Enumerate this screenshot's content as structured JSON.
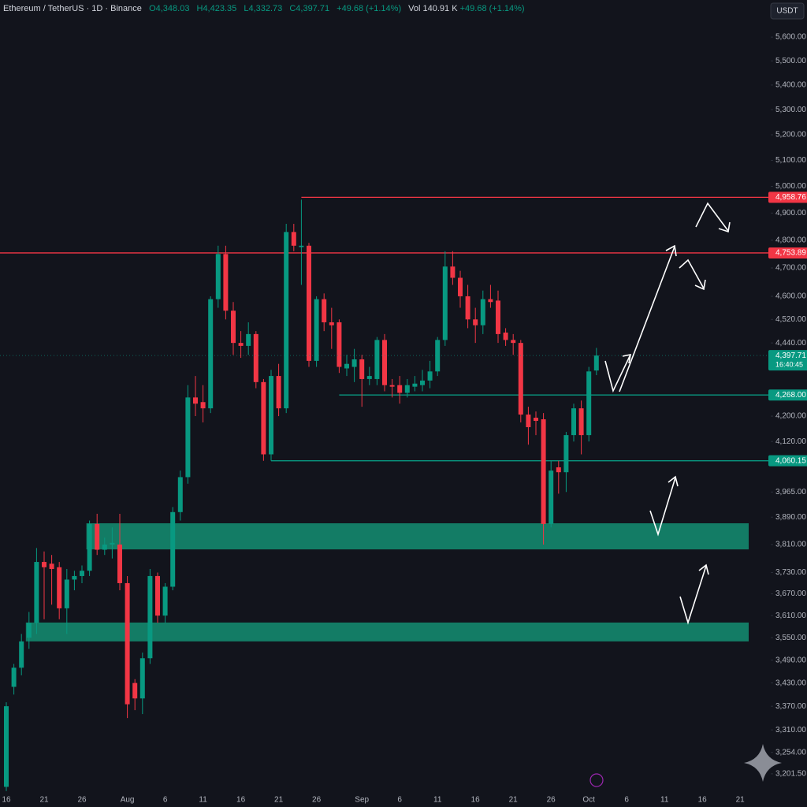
{
  "chart_data": {
    "type": "candlestick",
    "title": "Ethereum / TetherUS · 1D · Binance",
    "legend_values": [
      "O4,348.03",
      "H4,423.35",
      "L4,332.73",
      "C4,397.71",
      "+49.68 (+1.14%)"
    ],
    "volume": "Vol 140.91 K",
    "volume_change": "+49.68 (+1.14%)",
    "currency": "USDT",
    "up_color": "#089981",
    "down_color": "#f23645",
    "log": true,
    "grid": false,
    "ylim": [
      3167,
      5760
    ],
    "yticks": [
      {
        "value": 5600,
        "label": "5,600.00"
      },
      {
        "value": 5500,
        "label": "5,500.00"
      },
      {
        "value": 5400,
        "label": "5,400.00"
      },
      {
        "value": 5300,
        "label": "5,300.00"
      },
      {
        "value": 5200,
        "label": "5,200.00"
      },
      {
        "value": 5100,
        "label": "5,100.00"
      },
      {
        "value": 5000,
        "label": "5,000.00"
      },
      {
        "value": 4900,
        "label": "4,900.00"
      },
      {
        "value": 4800,
        "label": "4,800.00"
      },
      {
        "value": 4700,
        "label": "4,700.00"
      },
      {
        "value": 4600,
        "label": "4,600.00"
      },
      {
        "value": 4520,
        "label": "4,520.00"
      },
      {
        "value": 4440,
        "label": "4,440.00"
      },
      {
        "value": 4200,
        "label": "4,200.00"
      },
      {
        "value": 4120,
        "label": "4,120.00"
      },
      {
        "value": 3965,
        "label": "3,965.00"
      },
      {
        "value": 3890,
        "label": "3,890.00"
      },
      {
        "value": 3810,
        "label": "3,810.00"
      },
      {
        "value": 3730,
        "label": "3,730.00"
      },
      {
        "value": 3670,
        "label": "3,670.00"
      },
      {
        "value": 3610,
        "label": "3,610.00"
      },
      {
        "value": 3550,
        "label": "3,550.00"
      },
      {
        "value": 3490,
        "label": "3,490.00"
      },
      {
        "value": 3430,
        "label": "3,430.00"
      },
      {
        "value": 3370,
        "label": "3,370.00"
      },
      {
        "value": 3310,
        "label": "3,310.00"
      },
      {
        "value": 3254,
        "label": "3,254.00"
      },
      {
        "value": 3201.5,
        "label": "3,201.50"
      }
    ],
    "categories": [
      "16",
      null,
      null,
      null,
      null,
      "21",
      null,
      null,
      null,
      null,
      "26",
      null,
      null,
      null,
      null,
      null,
      "Aug",
      null,
      null,
      null,
      null,
      "6",
      null,
      null,
      null,
      null,
      "11",
      null,
      null,
      null,
      null,
      "16",
      null,
      null,
      null,
      null,
      "21",
      null,
      null,
      null,
      null,
      "26",
      null,
      null,
      null,
      null,
      null,
      "Sep",
      null,
      null,
      null,
      null,
      "6",
      null,
      null,
      null,
      null,
      "11",
      null,
      null,
      null,
      null,
      "16",
      null,
      null,
      null,
      null,
      "21",
      null,
      null,
      null,
      null,
      "26",
      null,
      null,
      null,
      null,
      "Oct",
      null,
      null,
      null,
      null,
      "6",
      null,
      null,
      null,
      null,
      "11",
      null,
      null,
      null,
      null,
      "16",
      null,
      null,
      null,
      null,
      "21"
    ],
    "open": [
      3170,
      3420,
      3470,
      3550,
      3590,
      3760,
      3755,
      3745,
      3630,
      3710,
      3720,
      3735,
      3870,
      3795,
      3810,
      3810,
      3700,
      3430,
      3390,
      3495,
      3720,
      3610,
      3690,
      3905,
      4010,
      4260,
      4245,
      4225,
      4590,
      4750,
      4550,
      4440,
      4430,
      4470,
      4310,
      4080,
      4330,
      4225,
      4830,
      4775,
      4780,
      4380,
      4590,
      4510,
      4510,
      4355,
      4360,
      4385,
      4320,
      4320,
      4450,
      4300,
      4300,
      4275,
      4295,
      4300,
      4315,
      4345,
      4450,
      4705,
      4665,
      4600,
      4520,
      4500,
      4590,
      4585,
      4475,
      4450,
      4440,
      4205,
      4195,
      4190,
      3870,
      4040,
      4025,
      4140,
      4225,
      4140,
      4348.03,
      null,
      null,
      null,
      null,
      null,
      null,
      null,
      null,
      null,
      null,
      null,
      null,
      null,
      null,
      null,
      null,
      null,
      null,
      null
    ],
    "high": [
      3380,
      3480,
      3560,
      3620,
      3800,
      3790,
      3780,
      3760,
      3740,
      3735,
      3750,
      3880,
      3900,
      3830,
      3860,
      3900,
      3720,
      3440,
      3510,
      3740,
      3730,
      3700,
      3920,
      4030,
      4300,
      4330,
      4300,
      4600,
      4780,
      4780,
      4580,
      4480,
      4510,
      4480,
      4320,
      4350,
      4370,
      4860,
      4860,
      4950,
      4790,
      4600,
      4610,
      4560,
      4520,
      4400,
      4420,
      4400,
      4360,
      4460,
      4470,
      4320,
      4330,
      4320,
      4330,
      4350,
      4380,
      4460,
      4760,
      4760,
      4690,
      4640,
      4560,
      4620,
      4640,
      4620,
      4490,
      4470,
      4450,
      4230,
      4215,
      4210,
      4060,
      4060,
      4150,
      4240,
      4250,
      4360,
      4423.35,
      null,
      null,
      null,
      null,
      null,
      null,
      null,
      null,
      null,
      null,
      null,
      null,
      null,
      null,
      null,
      null,
      null,
      null,
      null
    ],
    "low": [
      3160,
      3400,
      3450,
      3520,
      3560,
      3600,
      3640,
      3600,
      3560,
      3680,
      3700,
      3720,
      3780,
      3780,
      3770,
      3680,
      3340,
      3360,
      3350,
      3480,
      3590,
      3590,
      3680,
      3880,
      3990,
      4200,
      4180,
      4210,
      4560,
      4520,
      4400,
      4390,
      4400,
      4290,
      4060,
      4060,
      4200,
      4210,
      4760,
      4640,
      4360,
      4360,
      4480,
      4420,
      4340,
      4330,
      4310,
      4230,
      4300,
      4300,
      4280,
      4260,
      4240,
      4260,
      4280,
      4280,
      4290,
      4330,
      4430,
      4640,
      4560,
      4490,
      4440,
      4470,
      4560,
      4440,
      4430,
      4400,
      4180,
      4110,
      4140,
      3810,
      3860,
      3960,
      3965,
      4120,
      4080,
      4120,
      4332.73,
      null,
      null,
      null,
      null,
      null,
      null,
      null,
      null,
      null,
      null,
      null,
      null,
      null,
      null,
      null,
      null,
      null,
      null,
      null
    ],
    "close": [
      3370,
      3470,
      3540,
      3590,
      3760,
      3745,
      3740,
      3630,
      3710,
      3720,
      3735,
      3870,
      3795,
      3810,
      3815,
      3700,
      3375,
      3390,
      3495,
      3720,
      3610,
      3690,
      3905,
      4010,
      4260,
      4240,
      4225,
      4590,
      4750,
      4550,
      4440,
      4430,
      4470,
      4310,
      4080,
      4330,
      4225,
      4830,
      4780,
      4780,
      4380,
      4590,
      4510,
      4500,
      4360,
      4370,
      4385,
      4320,
      4330,
      4450,
      4300,
      4295,
      4275,
      4300,
      4305,
      4315,
      4345,
      4450,
      4705,
      4665,
      4600,
      4520,
      4500,
      4590,
      4580,
      4470,
      4450,
      4440,
      4205,
      4165,
      4185,
      3870,
      4030,
      4025,
      4140,
      4225,
      4140,
      4345,
      4397.71,
      null,
      null,
      null,
      null,
      null,
      null,
      null,
      null,
      null,
      null,
      null,
      null,
      null,
      null,
      null,
      null,
      null,
      null,
      null
    ],
    "levels": [
      {
        "value": 4958.76,
        "label": "4,958.76",
        "color": "#f23645"
      },
      {
        "value": 4753.89,
        "label": "4,753.89",
        "color": "#f23645"
      },
      {
        "value": 4268,
        "label": "4,268.00",
        "color": "#089981"
      },
      {
        "value": 4060.15,
        "label": "4,060.15",
        "color": "#089981"
      }
    ],
    "zones": [
      {
        "low": 3796,
        "high": 3872,
        "color": "#14876e"
      },
      {
        "low": 3540,
        "high": 3591,
        "color": "#14876e"
      }
    ],
    "last_price": {
      "value": 4397.71,
      "label": "4,397.71",
      "countdown": "16:40:45",
      "color": "#089981"
    }
  }
}
